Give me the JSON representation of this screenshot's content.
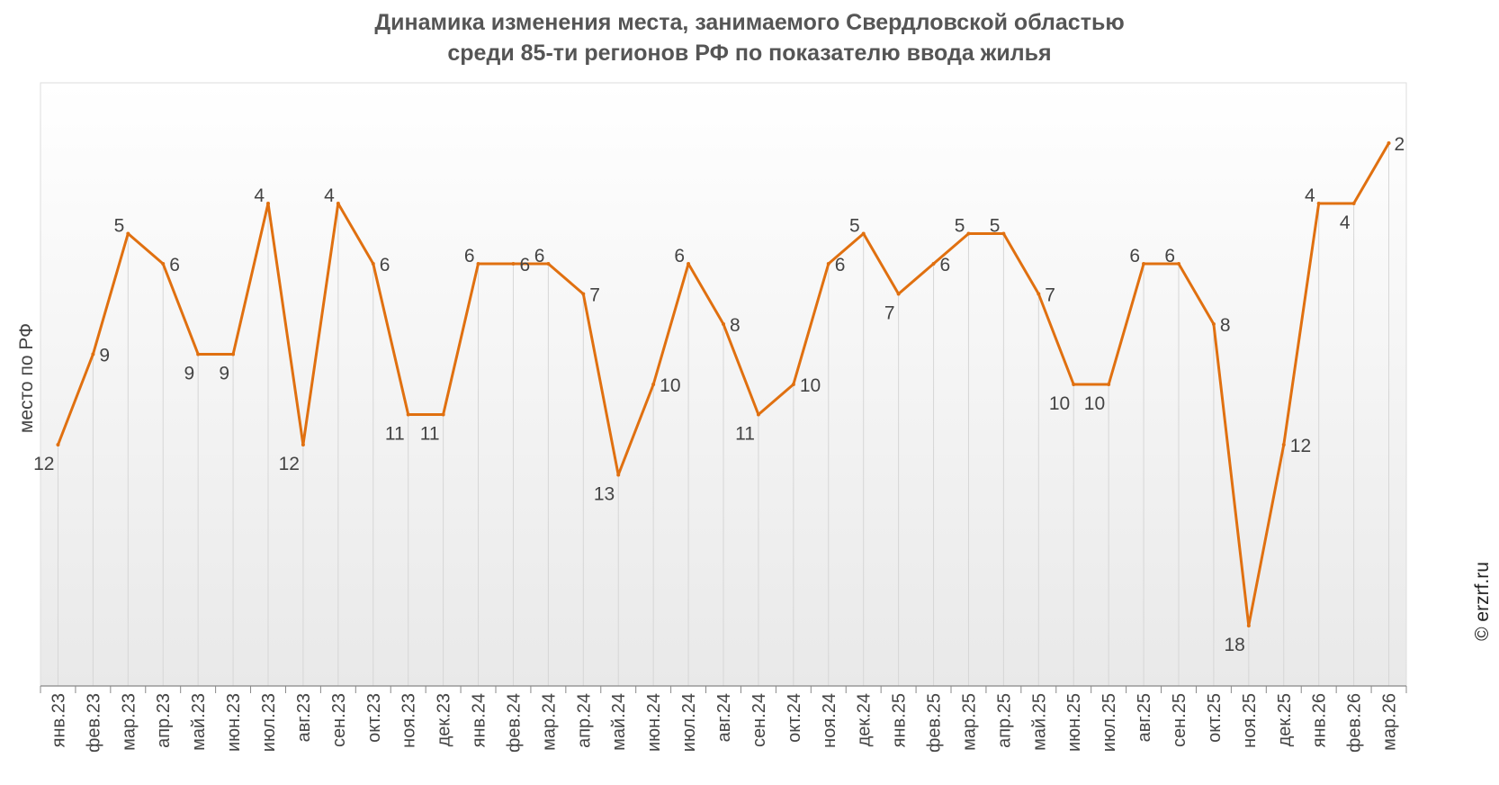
{
  "chart_data": {
    "type": "line",
    "title_line1": "Динамика изменения места, занимаемого Свердловской областью",
    "title_line2": "среди 85-ти регионов РФ по показателю ввода жилья",
    "ylabel": "место по РФ",
    "y_inverted": true,
    "ylim": [
      20,
      0
    ],
    "grid": "vertical",
    "series_color": "#E07010",
    "categories": [
      "янв.23",
      "фев.23",
      "мар.23",
      "апр.23",
      "май.23",
      "июн.23",
      "июл.23",
      "авг.23",
      "сен.23",
      "окт.23",
      "ноя.23",
      "дек.23",
      "янв.24",
      "фев.24",
      "мар.24",
      "апр.24",
      "май.24",
      "июн.24",
      "июл.24",
      "авг.24",
      "сен.24",
      "окт.24",
      "ноя.24",
      "дек.24",
      "янв.25",
      "фев.25",
      "мар.25",
      "апр.25",
      "май.25",
      "июн.25",
      "июл.25",
      "авг.25",
      "сен.25",
      "окт.25",
      "ноя.25",
      "дек.25",
      "янв.26",
      "фев.26",
      "мар.26"
    ],
    "values": [
      12,
      9,
      5,
      6,
      9,
      9,
      4,
      12,
      4,
      6,
      11,
      11,
      6,
      6,
      6,
      7,
      13,
      10,
      6,
      8,
      11,
      10,
      6,
      5,
      7,
      6,
      5,
      5,
      7,
      10,
      10,
      6,
      6,
      8,
      18,
      12,
      4,
      4,
      2
    ]
  },
  "watermark": "© erzrf.ru"
}
